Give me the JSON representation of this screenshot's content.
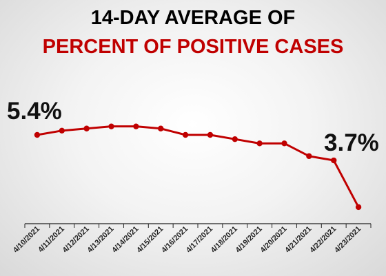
{
  "chart_data": {
    "type": "line",
    "title": "14-DAY AVERAGE OF",
    "subtitle": "PERCENT OF POSITIVE CASES",
    "categories": [
      "4/10/2021",
      "4/11/2021",
      "4/12/2021",
      "4/13/2021",
      "4/14/2021",
      "4/15/2021",
      "4/16/2021",
      "4/17/2021",
      "4/18/2021",
      "4/19/2021",
      "4/20/2021",
      "4/21/2021",
      "4/22/2021",
      "4/23/2021"
    ],
    "series": [
      {
        "values": [
          5.4,
          5.5,
          5.55,
          5.6,
          5.6,
          5.55,
          5.4,
          5.4,
          5.3,
          5.2,
          5.2,
          4.9,
          4.8,
          3.7
        ]
      }
    ],
    "annotations": {
      "start_label": "5.4%",
      "end_label": "3.7%"
    },
    "ylim": [
      0,
      8
    ],
    "grid": false,
    "colors": {
      "line": "#c00000",
      "marker": "#c00000",
      "subtitle": "#c00000",
      "axis": "#222222"
    }
  }
}
